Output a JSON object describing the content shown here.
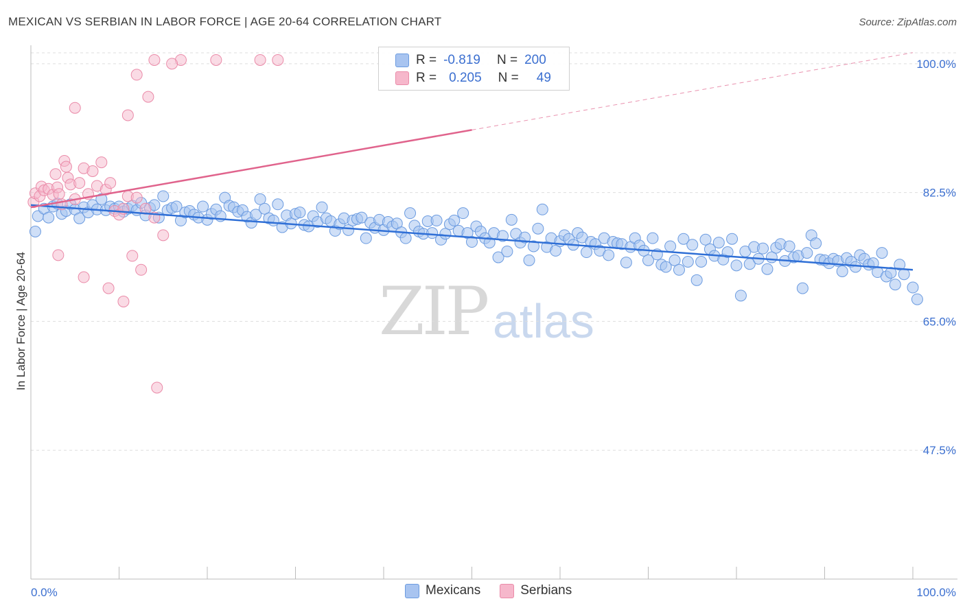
{
  "header": {
    "title": "MEXICAN VS SERBIAN IN LABOR FORCE | AGE 20-64 CORRELATION CHART",
    "source": "Source: ZipAtlas.com"
  },
  "legend": {
    "rows": [
      {
        "r_label": "R =",
        "r_value": "-0.819",
        "n_label": "N =",
        "n_value": "200",
        "color": "#a8c4f0"
      },
      {
        "r_label": "R =",
        "r_value": "0.205",
        "n_label": "N =",
        "n_value": "49",
        "color": "#f6b7cb"
      }
    ]
  },
  "watermark": {
    "zip": "ZIP",
    "atlas": "atlas"
  },
  "colors": {
    "blue_fill": "#a8c4f0",
    "blue_stroke": "#6b9be0",
    "blue_line": "#2f6fd6",
    "pink_fill": "#f6b7cb",
    "pink_stroke": "#ea8aa8",
    "pink_line": "#e0638c",
    "axis_label": "#3b6fd0",
    "grid": "#dddddd"
  },
  "chart_data": {
    "type": "scatter",
    "title": "MEXICAN VS SERBIAN IN LABOR FORCE | AGE 20-64 CORRELATION CHART",
    "xlabel": "",
    "ylabel": "In Labor Force | Age 20-64",
    "xlim": [
      0,
      100
    ],
    "ylim": [
      30,
      102.5
    ],
    "x_tick_labels": [
      "0.0%",
      "100.0%"
    ],
    "y_ticks": [
      47.5,
      65.0,
      82.5,
      100.0
    ],
    "y_tick_labels": [
      "47.5%",
      "65.0%",
      "82.5%",
      "100.0%"
    ],
    "grid": true,
    "legend_position": "bottom",
    "series": [
      {
        "name": "Mexicans",
        "trend": {
          "x0": 0,
          "y0": 80.8,
          "x1": 100,
          "y1": 72.0
        },
        "points": [
          [
            0.5,
            77.2
          ],
          [
            0.8,
            79.3
          ],
          [
            1.5,
            80.3
          ],
          [
            2,
            79.1
          ],
          [
            2.5,
            80.6
          ],
          [
            3,
            81.0
          ],
          [
            3.5,
            79.6
          ],
          [
            4,
            80.0
          ],
          [
            4.5,
            80.9
          ],
          [
            5,
            80.2
          ],
          [
            5.5,
            79.0
          ],
          [
            6,
            80.5
          ],
          [
            6.5,
            79.8
          ],
          [
            7,
            80.8
          ],
          [
            7.5,
            80.2
          ],
          [
            8,
            81.6
          ],
          [
            8.5,
            80.1
          ],
          [
            9,
            80.6
          ],
          [
            9.5,
            80.3
          ],
          [
            10,
            80.6
          ],
          [
            10.5,
            79.9
          ],
          [
            11,
            80.3
          ],
          [
            11.5,
            80.7
          ],
          [
            12,
            80.1
          ],
          [
            12.5,
            81.1
          ],
          [
            13,
            79.4
          ],
          [
            13.5,
            80.4
          ],
          [
            14,
            80.8
          ],
          [
            14.5,
            79.1
          ],
          [
            15,
            82.0
          ],
          [
            15.5,
            80.1
          ],
          [
            16,
            80.4
          ],
          [
            16.5,
            80.6
          ],
          [
            17,
            78.7
          ],
          [
            17.5,
            79.8
          ],
          [
            18,
            80.0
          ],
          [
            18.5,
            79.5
          ],
          [
            19,
            79.1
          ],
          [
            19.5,
            80.6
          ],
          [
            20,
            78.8
          ],
          [
            20.5,
            79.6
          ],
          [
            21,
            80.2
          ],
          [
            21.5,
            79.3
          ],
          [
            22,
            81.8
          ],
          [
            22.5,
            80.7
          ],
          [
            23,
            80.5
          ],
          [
            23.5,
            79.9
          ],
          [
            24,
            80.1
          ],
          [
            24.5,
            79.2
          ],
          [
            25,
            78.4
          ],
          [
            25.5,
            79.5
          ],
          [
            26,
            81.6
          ],
          [
            26.5,
            80.3
          ],
          [
            27,
            79.0
          ],
          [
            27.5,
            78.7
          ],
          [
            28,
            80.9
          ],
          [
            28.5,
            77.8
          ],
          [
            29,
            79.4
          ],
          [
            29.5,
            78.3
          ],
          [
            30,
            79.6
          ],
          [
            30.5,
            79.8
          ],
          [
            31,
            78.1
          ],
          [
            31.5,
            77.9
          ],
          [
            32,
            79.3
          ],
          [
            32.5,
            78.5
          ],
          [
            33,
            80.5
          ],
          [
            33.5,
            79.0
          ],
          [
            34,
            78.6
          ],
          [
            34.5,
            77.3
          ],
          [
            35,
            78.2
          ],
          [
            35.5,
            79.0
          ],
          [
            36,
            77.4
          ],
          [
            36.5,
            78.7
          ],
          [
            37,
            78.9
          ],
          [
            37.5,
            79.1
          ],
          [
            38,
            76.3
          ],
          [
            38.5,
            78.4
          ],
          [
            39,
            77.7
          ],
          [
            39.5,
            78.8
          ],
          [
            40,
            77.4
          ],
          [
            40.5,
            78.5
          ],
          [
            41,
            77.9
          ],
          [
            41.5,
            78.3
          ],
          [
            42,
            77.1
          ],
          [
            42.5,
            76.3
          ],
          [
            43,
            79.7
          ],
          [
            43.5,
            78.0
          ],
          [
            44,
            77.2
          ],
          [
            44.5,
            76.9
          ],
          [
            45,
            78.6
          ],
          [
            45.5,
            77.0
          ],
          [
            46,
            78.7
          ],
          [
            46.5,
            76.1
          ],
          [
            47,
            76.9
          ],
          [
            47.5,
            78.2
          ],
          [
            48,
            78.7
          ],
          [
            48.5,
            77.3
          ],
          [
            49,
            79.7
          ],
          [
            49.5,
            77.0
          ],
          [
            50,
            75.8
          ],
          [
            50.5,
            77.9
          ],
          [
            51,
            77.2
          ],
          [
            51.5,
            76.3
          ],
          [
            52,
            75.7
          ],
          [
            52.5,
            77.0
          ],
          [
            53,
            73.7
          ],
          [
            53.5,
            76.6
          ],
          [
            54,
            74.5
          ],
          [
            54.5,
            78.8
          ],
          [
            55,
            76.9
          ],
          [
            55.5,
            75.7
          ],
          [
            56,
            76.4
          ],
          [
            56.5,
            73.3
          ],
          [
            57,
            75.2
          ],
          [
            57.5,
            77.6
          ],
          [
            58,
            80.2
          ],
          [
            58.5,
            75.1
          ],
          [
            59,
            76.3
          ],
          [
            59.5,
            74.6
          ],
          [
            60,
            75.9
          ],
          [
            60.5,
            76.7
          ],
          [
            61,
            76.2
          ],
          [
            61.5,
            75.4
          ],
          [
            62,
            77.0
          ],
          [
            62.5,
            76.4
          ],
          [
            63,
            74.4
          ],
          [
            63.5,
            75.8
          ],
          [
            64,
            75.5
          ],
          [
            64.5,
            74.6
          ],
          [
            65,
            76.3
          ],
          [
            65.5,
            74.0
          ],
          [
            66,
            75.8
          ],
          [
            66.5,
            75.6
          ],
          [
            67,
            75.5
          ],
          [
            67.5,
            73.0
          ],
          [
            68,
            75.1
          ],
          [
            68.5,
            76.3
          ],
          [
            69,
            75.3
          ],
          [
            69.5,
            74.6
          ],
          [
            70,
            73.3
          ],
          [
            70.5,
            76.3
          ],
          [
            71,
            74.1
          ],
          [
            71.5,
            72.7
          ],
          [
            72,
            72.4
          ],
          [
            72.5,
            75.2
          ],
          [
            73,
            73.3
          ],
          [
            73.5,
            72.0
          ],
          [
            74,
            76.2
          ],
          [
            74.5,
            73.1
          ],
          [
            75,
            75.4
          ],
          [
            75.5,
            70.6
          ],
          [
            76,
            73.1
          ],
          [
            76.5,
            76.1
          ],
          [
            77,
            74.8
          ],
          [
            77.5,
            73.9
          ],
          [
            78,
            75.7
          ],
          [
            78.5,
            73.4
          ],
          [
            79,
            74.4
          ],
          [
            79.5,
            76.2
          ],
          [
            80,
            72.6
          ],
          [
            80.5,
            68.5
          ],
          [
            81,
            74.5
          ],
          [
            81.5,
            72.8
          ],
          [
            82,
            75.1
          ],
          [
            82.5,
            73.5
          ],
          [
            83,
            74.9
          ],
          [
            83.5,
            72.1
          ],
          [
            84,
            73.7
          ],
          [
            84.5,
            75.0
          ],
          [
            85,
            75.5
          ],
          [
            85.5,
            73.2
          ],
          [
            86,
            75.2
          ],
          [
            86.5,
            73.7
          ],
          [
            87,
            73.9
          ],
          [
            87.5,
            69.5
          ],
          [
            88,
            74.3
          ],
          [
            88.5,
            76.7
          ],
          [
            89,
            75.6
          ],
          [
            89.5,
            73.4
          ],
          [
            90,
            73.3
          ],
          [
            90.5,
            72.9
          ],
          [
            91,
            73.5
          ],
          [
            91.5,
            73.2
          ],
          [
            92,
            71.8
          ],
          [
            92.5,
            73.6
          ],
          [
            93,
            73.1
          ],
          [
            93.5,
            72.4
          ],
          [
            94,
            74.0
          ],
          [
            94.5,
            73.5
          ],
          [
            95,
            72.7
          ],
          [
            95.5,
            72.9
          ],
          [
            96,
            71.7
          ],
          [
            96.5,
            74.3
          ],
          [
            97,
            71.1
          ],
          [
            97.5,
            71.6
          ],
          [
            98,
            70.0
          ],
          [
            98.5,
            72.7
          ],
          [
            99,
            71.4
          ],
          [
            100,
            69.6
          ],
          [
            100.5,
            68.0
          ]
        ]
      },
      {
        "name": "Serbians",
        "trend": {
          "x0": 0,
          "y0": 80.5,
          "x1": 100,
          "y1": 101.5
        },
        "points": [
          [
            0.3,
            81.2
          ],
          [
            0.5,
            82.4
          ],
          [
            1.0,
            82.0
          ],
          [
            1.2,
            83.3
          ],
          [
            1.5,
            82.8
          ],
          [
            2.0,
            83.0
          ],
          [
            2.5,
            82.2
          ],
          [
            2.8,
            85.0
          ],
          [
            3.0,
            83.2
          ],
          [
            3.2,
            82.3
          ],
          [
            3.5,
            80.9
          ],
          [
            3.8,
            86.8
          ],
          [
            4.0,
            86.0
          ],
          [
            4.2,
            84.5
          ],
          [
            4.5,
            83.6
          ],
          [
            5.0,
            81.6
          ],
          [
            5.5,
            83.8
          ],
          [
            6.0,
            85.8
          ],
          [
            6.5,
            82.3
          ],
          [
            7.0,
            85.4
          ],
          [
            7.5,
            83.4
          ],
          [
            8.0,
            86.6
          ],
          [
            8.5,
            82.9
          ],
          [
            9.0,
            83.8
          ],
          [
            9.5,
            80.0
          ],
          [
            10.0,
            79.5
          ],
          [
            10.5,
            80.3
          ],
          [
            11.0,
            82.0
          ],
          [
            12.0,
            81.8
          ],
          [
            13.0,
            80.3
          ],
          [
            14.0,
            79.1
          ],
          [
            15.0,
            76.7
          ],
          [
            3.1,
            74.0
          ],
          [
            6.0,
            71.0
          ],
          [
            8.8,
            69.5
          ],
          [
            10.5,
            67.7
          ],
          [
            11.5,
            73.9
          ],
          [
            12.5,
            72.0
          ],
          [
            13.3,
            95.5
          ],
          [
            12.0,
            98.5
          ],
          [
            14.0,
            100.5
          ],
          [
            17.0,
            100.5
          ],
          [
            16.0,
            100.0
          ],
          [
            21.0,
            100.5
          ],
          [
            26.0,
            100.5
          ],
          [
            28.0,
            100.5
          ],
          [
            5.0,
            94.0
          ],
          [
            11.0,
            93.0
          ],
          [
            14.3,
            56.0
          ]
        ]
      }
    ]
  }
}
